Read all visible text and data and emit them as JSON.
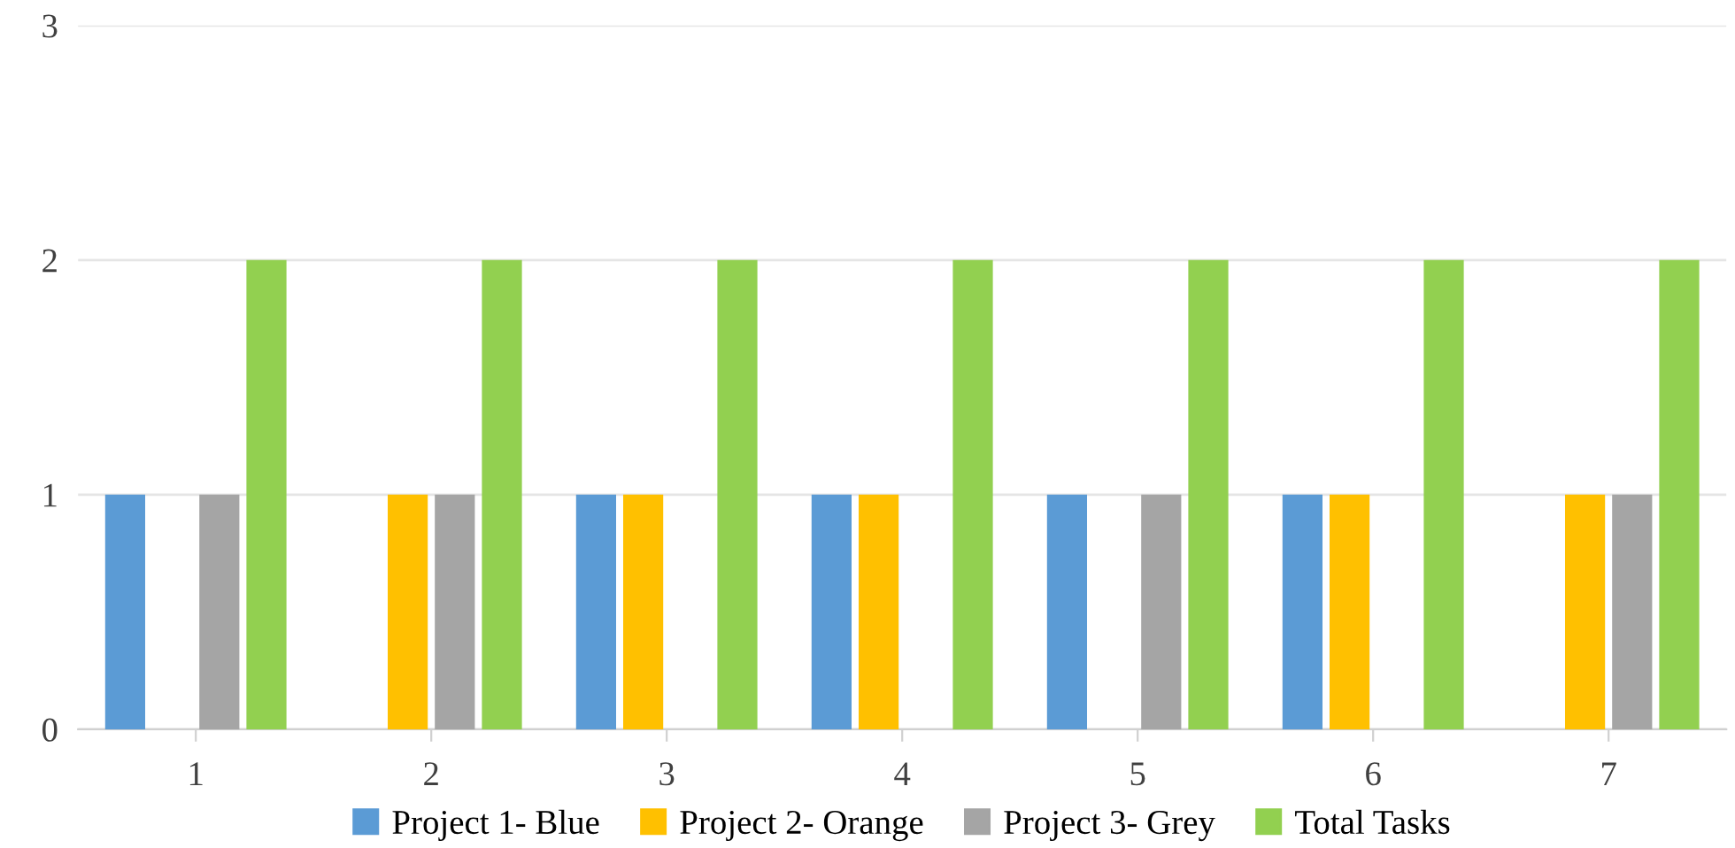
{
  "chart_data": {
    "type": "bar",
    "categories": [
      "1",
      "2",
      "3",
      "4",
      "5",
      "6",
      "7"
    ],
    "series": [
      {
        "name": "Project 1- Blue",
        "color": "#5b9bd5",
        "values": [
          1,
          0,
          1,
          1,
          1,
          1,
          0
        ]
      },
      {
        "name": "Project 2- Orange",
        "color": "#ffc000",
        "values": [
          0,
          1,
          1,
          1,
          0,
          1,
          1
        ]
      },
      {
        "name": "Project 3- Grey",
        "color": "#a5a5a5",
        "values": [
          1,
          1,
          0,
          0,
          1,
          0,
          1
        ]
      },
      {
        "name": "Total Tasks",
        "color": "#92d050",
        "values": [
          2,
          2,
          2,
          2,
          2,
          2,
          2
        ]
      }
    ],
    "ylim": [
      0,
      3
    ],
    "yticks": [
      0,
      1,
      2,
      3
    ],
    "grid": "y",
    "legend": "bottom"
  }
}
